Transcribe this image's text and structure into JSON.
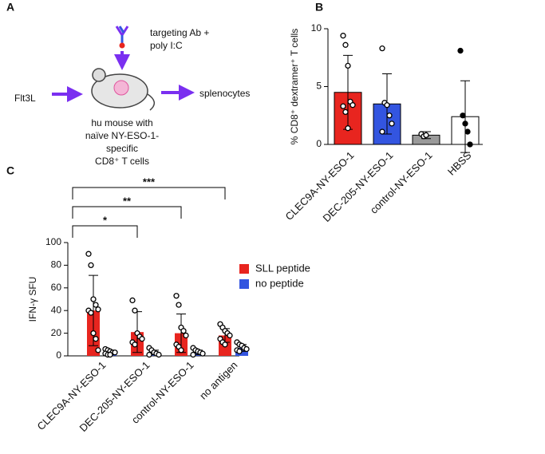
{
  "diagram": {
    "panel_label": "A",
    "antibody_label": [
      "targeting Ab +",
      "poly I:C"
    ],
    "input": "Flt3L",
    "mouse_label": [
      "hu mouse with",
      "naïve NY-ESO-1-",
      "specific",
      "CD8⁺ T cells"
    ],
    "output": "splenocytes"
  },
  "chart_data": [
    {
      "type": "bar",
      "panel_label": "B",
      "y_label": "% CD8⁺ dextramer⁺ T cells",
      "categories": [
        "CLEC9A-NY-ESO-1",
        "DEC-205-NY-ESO-1",
        "control-NY-ESO-1",
        "HBSS"
      ],
      "values": [
        4.5,
        3.5,
        0.8,
        2.4
      ],
      "errors": [
        3.2,
        2.6,
        0.3,
        3.1
      ],
      "colors": [
        "#e8251f",
        "#3355e0",
        "#9a9a9a",
        "#ffffff"
      ],
      "points": [
        [
          9.4,
          8.6,
          6.8,
          3.7,
          3.4,
          3.3,
          2.8,
          1.4
        ],
        [
          8.3,
          3.6,
          3.4,
          2.5,
          1.8,
          1.1
        ],
        [
          0.9,
          0.7,
          0.8
        ],
        [
          8.1,
          2.5,
          1.8,
          1.1,
          0
        ]
      ],
      "point_fills": [
        "#ffffff",
        "#ffffff",
        "#ffffff",
        "#000000"
      ],
      "ylim": [
        0,
        10
      ],
      "yticks": [
        0,
        5,
        10
      ]
    },
    {
      "type": "grouped-bar",
      "panel_label": "C",
      "y_label": "IFN-γ SFU",
      "categories": [
        "CLEC9A-NY-ESO-1",
        "DEC-205-NY-ESO-1",
        "control-NY-ESO-1",
        "no antigen"
      ],
      "series": [
        {
          "name": "SLL peptide",
          "color": "#e8251f",
          "values": [
            40,
            21,
            20,
            18
          ],
          "errors": [
            31,
            18,
            17,
            6
          ],
          "points": [
            [
              90,
              80,
              50,
              45,
              41,
              40,
              38,
              20,
              15,
              5
            ],
            [
              49,
              40,
              20,
              17,
              15,
              12,
              10
            ],
            [
              53,
              45,
              25,
              22,
              18,
              10,
              8,
              5
            ],
            [
              28,
              25,
              22,
              20,
              18,
              15,
              12,
              10
            ]
          ]
        },
        {
          "name": "no peptide",
          "color": "#3355e0",
          "values": [
            3,
            3,
            3,
            7
          ],
          "errors": [
            2,
            2,
            2,
            3
          ],
          "points": [
            [
              6,
              5,
              4,
              3,
              3,
              2,
              1,
              1
            ],
            [
              7,
              5,
              3,
              2,
              1,
              1
            ],
            [
              7,
              5,
              4,
              3,
              2,
              1
            ],
            [
              12,
              10,
              9,
              7,
              6,
              5,
              4
            ]
          ]
        }
      ],
      "annotations": [
        "*",
        "**",
        "***"
      ],
      "ylim": [
        0,
        100
      ],
      "yticks": [
        0,
        20,
        40,
        60,
        80,
        100
      ]
    }
  ]
}
